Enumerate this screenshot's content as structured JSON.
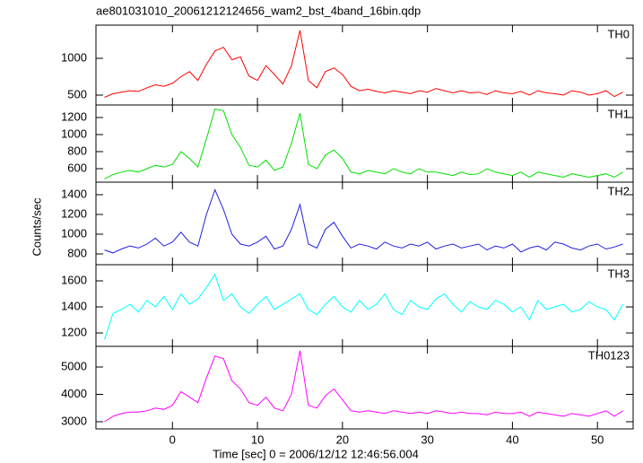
{
  "chart_data": {
    "type": "line",
    "title": "ae801031010_20061212124656_wam2_bst_4band_16bin.qdp",
    "x_label": "Time [sec] 0 = 2006/12/12 12:46:56.004",
    "y_label": "Counts/sec",
    "x": [
      -8,
      -7,
      -6,
      -5,
      -4,
      -3,
      -2,
      -1,
      0,
      1,
      2,
      3,
      4,
      5,
      6,
      7,
      8,
      9,
      10,
      11,
      12,
      13,
      14,
      15,
      16,
      17,
      18,
      19,
      20,
      21,
      22,
      23,
      24,
      25,
      26,
      27,
      28,
      29,
      30,
      31,
      32,
      33,
      34,
      35,
      36,
      37,
      38,
      39,
      40,
      41,
      42,
      43,
      44,
      45,
      46,
      47,
      48,
      49,
      50,
      51,
      52,
      53
    ],
    "xlim": [
      -9,
      54.2
    ],
    "xticks": [
      0,
      10,
      20,
      30,
      40,
      50
    ],
    "panels": [
      {
        "name": "TH0",
        "color": "#ff0000",
        "ylim": [
          366,
          1451
        ],
        "yticks": [
          500,
          1000
        ],
        "values": [
          470,
          520,
          540,
          560,
          550,
          600,
          640,
          620,
          660,
          750,
          820,
          700,
          920,
          1100,
          1150,
          980,
          1020,
          760,
          700,
          900,
          780,
          650,
          900,
          1380,
          700,
          600,
          820,
          870,
          780,
          620,
          560,
          580,
          550,
          530,
          560,
          540,
          520,
          560,
          540,
          590,
          560,
          530,
          560,
          530,
          540,
          510,
          560,
          530,
          520,
          550,
          500,
          560,
          530,
          520,
          500,
          560,
          540,
          500,
          520,
          560,
          480,
          540
        ]
      },
      {
        "name": "TH1",
        "color": "#00e000",
        "ylim": [
          442,
          1347
        ],
        "yticks": [
          600,
          800,
          1000,
          1200
        ],
        "values": [
          480,
          530,
          560,
          580,
          560,
          600,
          640,
          620,
          650,
          800,
          720,
          620,
          950,
          1300,
          1280,
          1000,
          850,
          640,
          620,
          700,
          580,
          620,
          900,
          1250,
          650,
          600,
          760,
          820,
          720,
          560,
          540,
          580,
          560,
          540,
          600,
          560,
          540,
          600,
          560,
          560,
          540,
          520,
          560,
          530,
          540,
          600,
          560,
          540,
          520,
          560,
          500,
          560,
          540,
          520,
          500,
          540,
          520,
          500,
          520,
          540,
          500,
          560
        ]
      },
      {
        "name": "TH2",
        "color": "#2020e0",
        "ylim": [
          691,
          1527
        ],
        "yticks": [
          800,
          1000,
          1200,
          1400
        ],
        "values": [
          840,
          810,
          850,
          880,
          860,
          900,
          960,
          880,
          920,
          1020,
          920,
          880,
          1200,
          1450,
          1250,
          1000,
          900,
          880,
          920,
          980,
          850,
          880,
          1050,
          1300,
          900,
          860,
          1050,
          1120,
          980,
          860,
          900,
          880,
          850,
          920,
          880,
          860,
          900,
          880,
          920,
          850,
          880,
          900,
          860,
          880,
          900,
          840,
          880,
          860,
          900,
          820,
          860,
          880,
          840,
          920,
          900,
          860,
          840,
          880,
          900,
          850,
          870,
          900
        ]
      },
      {
        "name": "TH3",
        "color": "#00ffff",
        "ylim": [
          1097,
          1724
        ],
        "yticks": [
          1200,
          1400,
          1600
        ],
        "values": [
          1150,
          1350,
          1380,
          1420,
          1360,
          1450,
          1400,
          1480,
          1380,
          1500,
          1420,
          1460,
          1550,
          1650,
          1450,
          1500,
          1400,
          1350,
          1420,
          1480,
          1380,
          1420,
          1460,
          1500,
          1380,
          1340,
          1420,
          1480,
          1400,
          1360,
          1450,
          1380,
          1420,
          1500,
          1380,
          1340,
          1450,
          1400,
          1380,
          1460,
          1500,
          1420,
          1360,
          1440,
          1400,
          1380,
          1450,
          1420,
          1360,
          1400,
          1300,
          1450,
          1380,
          1400,
          1420,
          1360,
          1380,
          1440,
          1400,
          1380,
          1300,
          1420
        ]
      },
      {
        "name": "TH0123",
        "color": "#ff00ff",
        "ylim": [
          2738,
          5754
        ],
        "yticks": [
          3000,
          4000,
          5000
        ],
        "values": [
          3000,
          3200,
          3300,
          3350,
          3350,
          3400,
          3500,
          3450,
          3600,
          4100,
          3900,
          3700,
          4600,
          5400,
          5300,
          4500,
          4200,
          3700,
          3600,
          3900,
          3500,
          3400,
          4000,
          5600,
          3600,
          3500,
          3950,
          4200,
          3800,
          3400,
          3350,
          3400,
          3350,
          3300,
          3400,
          3350,
          3300,
          3350,
          3300,
          3400,
          3350,
          3300,
          3350,
          3300,
          3300,
          3250,
          3350,
          3300,
          3300,
          3350,
          3200,
          3350,
          3300,
          3250,
          3200,
          3300,
          3250,
          3200,
          3300,
          3400,
          3200,
          3400
        ]
      }
    ]
  }
}
